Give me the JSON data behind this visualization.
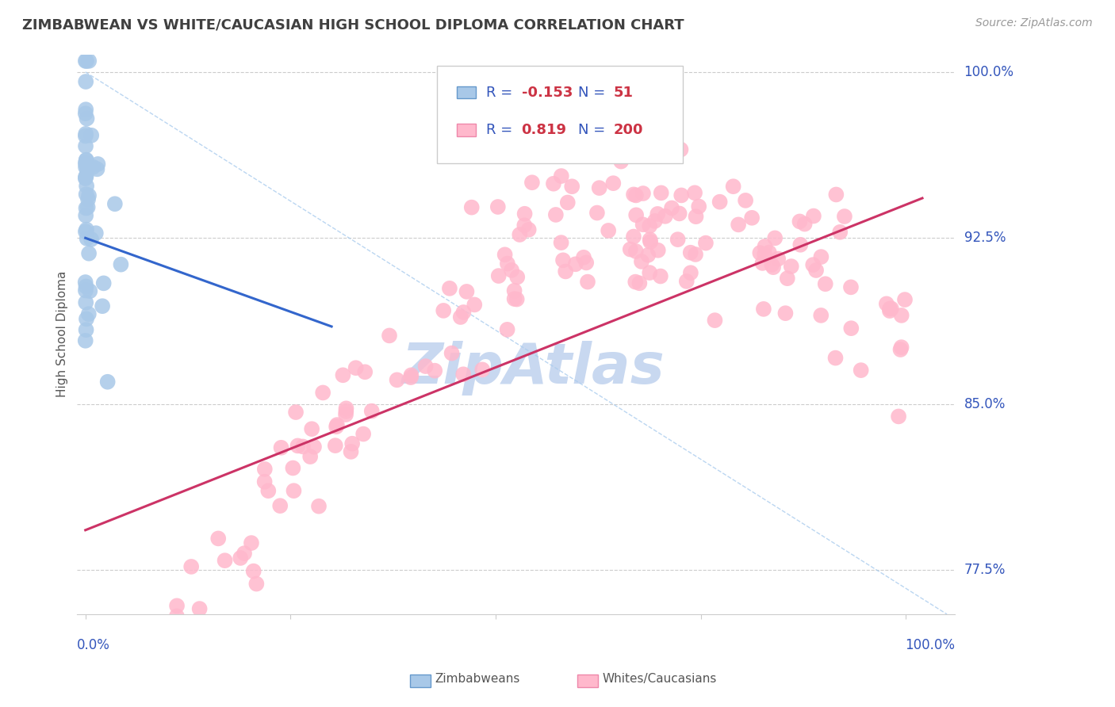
{
  "title": "ZIMBABWEAN VS WHITE/CAUCASIAN HIGH SCHOOL DIPLOMA CORRELATION CHART",
  "source": "Source: ZipAtlas.com",
  "ylabel": "High School Diploma",
  "ylim": [
    0.755,
    1.008
  ],
  "xlim": [
    -0.01,
    1.06
  ],
  "ytick_positions": [
    0.775,
    0.85,
    0.925,
    1.0
  ],
  "ytick_labels": [
    "77.5%",
    "85.0%",
    "92.5%",
    "100.0%"
  ],
  "blue_scatter_color": "#a8c8e8",
  "blue_scatter_edge": "#6699cc",
  "pink_scatter_color": "#ffb8cc",
  "pink_scatter_edge": "#ee88aa",
  "trend_blue_color": "#3366cc",
  "trend_pink_color": "#cc3366",
  "ref_line_color": "#aaccee",
  "legend_text_color": "#3355bb",
  "legend_value_color": "#cc3344",
  "title_color": "#404040",
  "axis_label_color": "#3355bb",
  "watermark_color": "#c8d8f0",
  "background": "#ffffff",
  "grid_color": "#cccccc",
  "seed": 42,
  "n_blue": 51,
  "n_pink": 200,
  "R_blue": -0.153,
  "R_pink": 0.819,
  "blue_trend_x": [
    0.0,
    0.3
  ],
  "blue_trend_y": [
    0.925,
    0.885
  ],
  "pink_trend_x": [
    0.0,
    1.02
  ],
  "pink_trend_y": [
    0.793,
    0.943
  ]
}
